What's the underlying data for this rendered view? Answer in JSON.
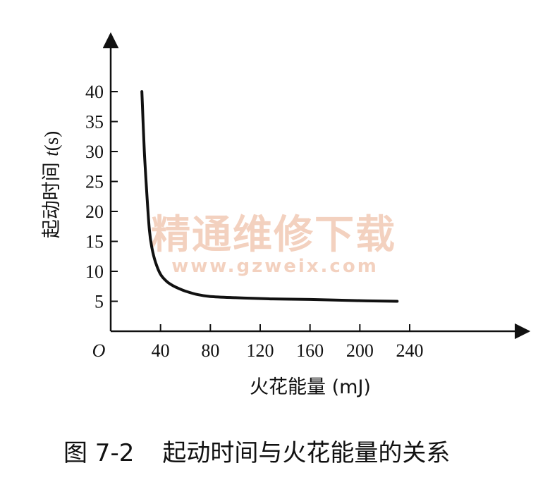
{
  "chart_data": {
    "type": "line",
    "ylabel_prefix": "起动时间 ",
    "ylabel_var": "t",
    "ylabel_unit": "(s)",
    "xlabel": "火花能量 (mJ)",
    "origin_label": "O",
    "xlim": [
      0,
      250
    ],
    "ylim": [
      0,
      45
    ],
    "x_ticks": [
      40,
      80,
      120,
      160,
      200,
      240
    ],
    "y_ticks": [
      5,
      10,
      15,
      20,
      25,
      30,
      35,
      40
    ],
    "series": [
      {
        "x": [
          25,
          27,
          29,
          31,
          33,
          36,
          40,
          45,
          50,
          55,
          60,
          70,
          80,
          100,
          130,
          160,
          200,
          230
        ],
        "y": [
          40,
          30,
          23,
          17,
          14,
          11.5,
          9.5,
          8.3,
          7.6,
          7.1,
          6.7,
          6.1,
          5.8,
          5.6,
          5.4,
          5.3,
          5.1,
          5.0
        ]
      }
    ]
  },
  "caption": {
    "figure_number": "图 7-2",
    "text": "起动时间与火花能量的关系"
  },
  "watermark": {
    "text": "精通维修下载",
    "url": "www.gzweix.com",
    "color": "#f2c9b4"
  }
}
